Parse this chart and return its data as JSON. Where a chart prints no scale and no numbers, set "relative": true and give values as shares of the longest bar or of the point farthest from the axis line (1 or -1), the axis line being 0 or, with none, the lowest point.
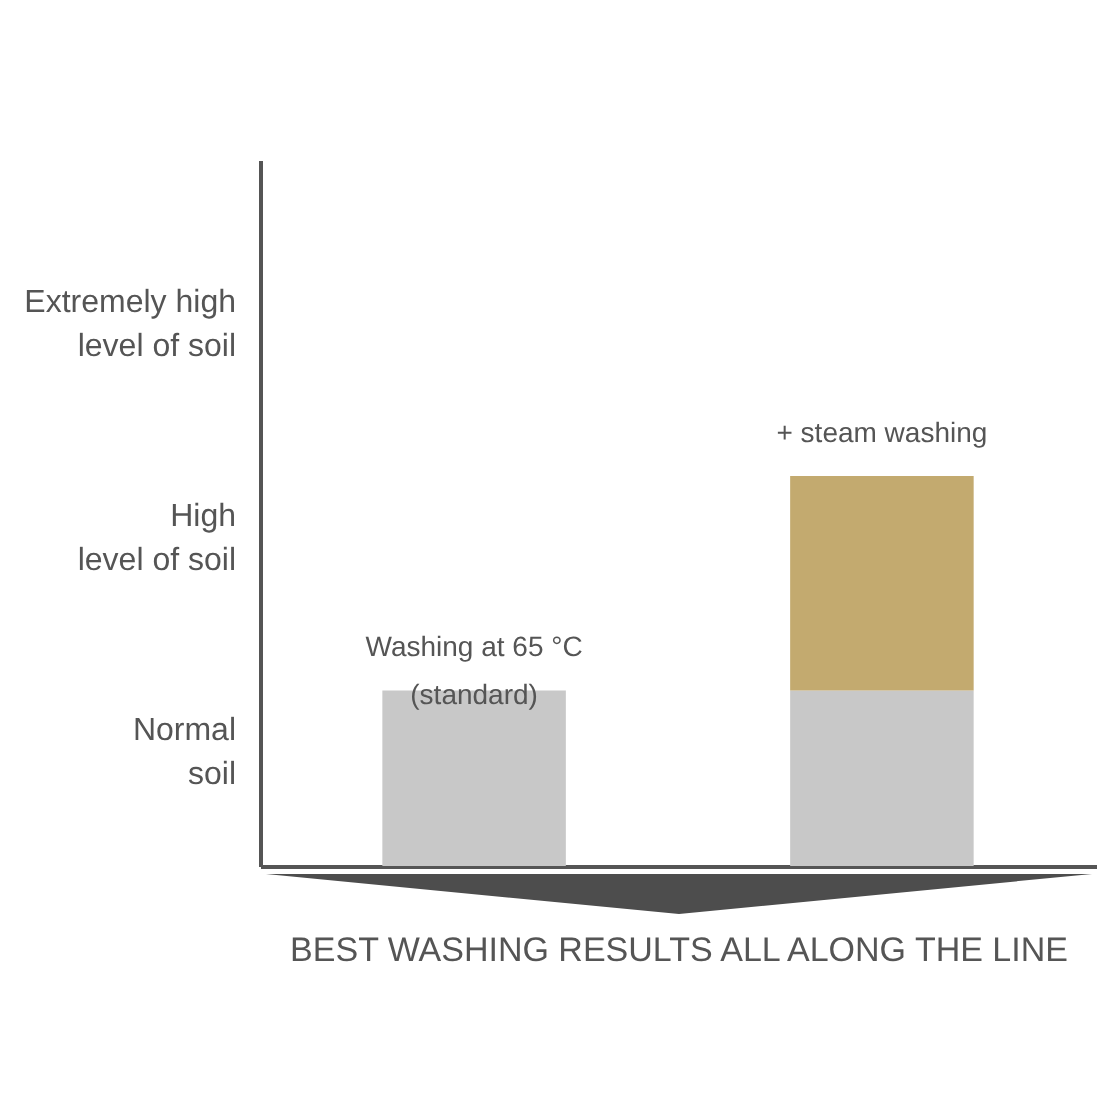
{
  "chart_data": {
    "type": "bar",
    "xlabel": "BEST WASHING RESULTS ALL ALONG THE LINE",
    "categories": [
      null,
      null
    ],
    "stacked": true,
    "relative": true,
    "series": [
      {
        "color": "#c8c8c8",
        "values": [
          0.45,
          0.45
        ]
      },
      {
        "color": "#c3aa6f",
        "values": [
          null,
          0.55
        ]
      }
    ],
    "annotations": [
      "Normal\nsoil",
      "High\nlevel of soil",
      "Extremely high\nlevel of soil",
      "Washing at 65 °C\n(standard)",
      "+ steam washing"
    ]
  }
}
